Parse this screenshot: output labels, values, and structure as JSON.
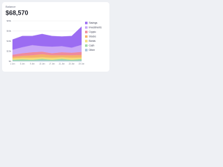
{
  "header": {
    "label": "Balance",
    "amount": "$68,570"
  },
  "chart_data": {
    "type": "stacked-area",
    "categories": [
      "1 Jan",
      "5 Jan",
      "9 Jan",
      "13 Jan",
      "17 Jan",
      "21 Jan",
      "25 Jan",
      "29 Jan"
    ],
    "series": [
      {
        "name": "Savings",
        "color": "#9b6cf2",
        "values": [
          20000,
          22000,
          18000,
          24000,
          21000,
          19000,
          23000,
          36000
        ]
      },
      {
        "name": "Investments",
        "color": "#c9a8f7",
        "values": [
          10000,
          12000,
          14000,
          11000,
          13000,
          12000,
          10000,
          14000
        ]
      },
      {
        "name": "Crypto",
        "color": "#f08a9c",
        "values": [
          4000,
          5000,
          6000,
          5000,
          4000,
          6000,
          5000,
          6000
        ]
      },
      {
        "name": "Stocks",
        "color": "#f5b36b",
        "values": [
          3000,
          4000,
          5000,
          6000,
          5000,
          4000,
          5000,
          5000
        ]
      },
      {
        "name": "Bonds",
        "color": "#f5dc7a",
        "values": [
          3000,
          3000,
          4000,
          3000,
          4000,
          3000,
          4000,
          3000
        ]
      },
      {
        "name": "Cash",
        "color": "#9fd9a8",
        "values": [
          2000,
          3000,
          2000,
          3000,
          2000,
          3000,
          2000,
          3000
        ]
      },
      {
        "name": "Other",
        "color": "#a9c4dc",
        "values": [
          1000,
          1000,
          1000,
          2000,
          1000,
          2000,
          1000,
          1570
        ]
      }
    ],
    "ylim": [
      0,
      80000
    ],
    "yticks": [
      {
        "value": 0,
        "label": "$0"
      },
      {
        "value": 20000,
        "label": "$20k"
      },
      {
        "value": 40000,
        "label": "$40k"
      },
      {
        "value": 60000,
        "label": "$60k"
      },
      {
        "value": 80000,
        "label": "$80k"
      }
    ],
    "grid": true
  }
}
